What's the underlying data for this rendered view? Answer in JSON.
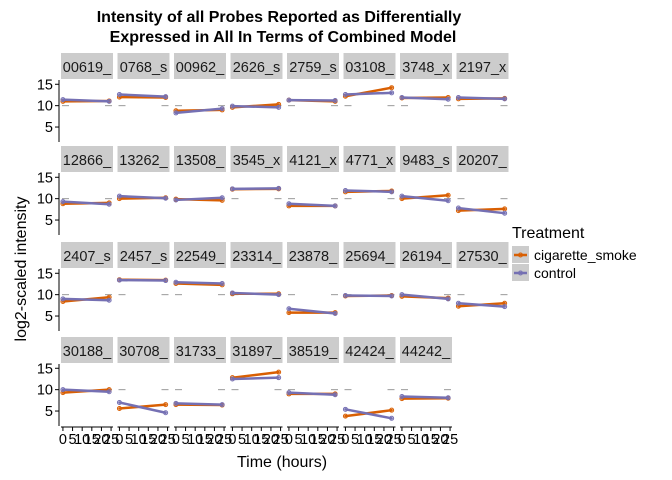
{
  "chart_data": {
    "type": "line",
    "title": "Intensity of all Probes Reported as Differentially\nExpressed in All In Terms of Combined Model",
    "xlabel": "Time (hours)",
    "ylabel": "log2-scaled intensity",
    "xlim": [
      -1,
      26
    ],
    "ylim": [
      1.5,
      16
    ],
    "x_ticks": [
      0,
      5,
      10,
      15,
      20,
      25
    ],
    "x_tick_labels": [
      "0",
      "5",
      "10",
      "15",
      "20",
      "25"
    ],
    "y_ticks": [
      5,
      10,
      15
    ],
    "y_tick_labels": [
      "5",
      "10",
      "15"
    ],
    "legend": {
      "title": "Treatment",
      "position": "right",
      "entries": [
        "cigarette_smoke",
        "control"
      ]
    },
    "colors": {
      "cigarette_smoke": "#d95f02",
      "control": "#7570b3"
    },
    "ncol": 8,
    "panels": [
      {
        "label": "00619_",
        "cs": [
          11.0,
          11.1
        ],
        "ct": [
          11.4,
          11.0
        ]
      },
      {
        "label": "0768_s",
        "cs": [
          12.0,
          11.9
        ],
        "ct": [
          12.6,
          12.1
        ]
      },
      {
        "label": "00962_",
        "cs": [
          8.8,
          9.0
        ],
        "ct": [
          8.3,
          9.3
        ]
      },
      {
        "label": "2626_s",
        "cs": [
          9.6,
          10.3
        ],
        "ct": [
          9.9,
          9.6
        ]
      },
      {
        "label": "2759_s",
        "cs": [
          11.3,
          11.0
        ],
        "ct": [
          11.3,
          11.2
        ]
      },
      {
        "label": "03108_",
        "cs": [
          12.2,
          14.2
        ],
        "ct": [
          12.6,
          13.0
        ]
      },
      {
        "label": "3748_x",
        "cs": [
          11.8,
          11.9
        ],
        "ct": [
          11.9,
          11.5
        ]
      },
      {
        "label": "2197_x",
        "cs": [
          11.6,
          11.7
        ],
        "ct": [
          11.9,
          11.6
        ]
      },
      {
        "label": "12866_",
        "cs": [
          8.8,
          9.0
        ],
        "ct": [
          9.3,
          8.7
        ]
      },
      {
        "label": "13262_",
        "cs": [
          10.0,
          10.2
        ],
        "ct": [
          10.6,
          10.1
        ]
      },
      {
        "label": "13508_",
        "cs": [
          9.9,
          9.6
        ],
        "ct": [
          9.7,
          10.2
        ]
      },
      {
        "label": "3545_x",
        "cs": [
          12.2,
          12.3
        ],
        "ct": [
          12.3,
          12.4
        ]
      },
      {
        "label": "4121_x",
        "cs": [
          8.3,
          8.3
        ],
        "ct": [
          8.8,
          8.3
        ]
      },
      {
        "label": "4771_x",
        "cs": [
          11.6,
          11.8
        ],
        "ct": [
          11.9,
          11.6
        ]
      },
      {
        "label": "9483_s",
        "cs": [
          10.0,
          10.8
        ],
        "ct": [
          10.6,
          9.5
        ]
      },
      {
        "label": "20207_",
        "cs": [
          7.2,
          7.6
        ],
        "ct": [
          7.8,
          6.6
        ]
      },
      {
        "label": "2407_s",
        "cs": [
          8.4,
          9.4
        ],
        "ct": [
          9.0,
          8.7
        ]
      },
      {
        "label": "2457_s",
        "cs": [
          13.5,
          13.4
        ],
        "ct": [
          13.4,
          13.3
        ]
      },
      {
        "label": "22549_",
        "cs": [
          12.6,
          12.3
        ],
        "ct": [
          12.9,
          12.6
        ]
      },
      {
        "label": "23314_",
        "cs": [
          10.2,
          10.2
        ],
        "ct": [
          10.4,
          10.0
        ]
      },
      {
        "label": "23878_",
        "cs": [
          5.8,
          5.8
        ],
        "ct": [
          6.7,
          5.6
        ]
      },
      {
        "label": "25694_",
        "cs": [
          9.7,
          9.8
        ],
        "ct": [
          9.8,
          9.7
        ]
      },
      {
        "label": "26194_",
        "cs": [
          9.6,
          9.2
        ],
        "ct": [
          10.0,
          9.0
        ]
      },
      {
        "label": "27530_",
        "cs": [
          7.3,
          8.0
        ],
        "ct": [
          8.0,
          7.2
        ]
      },
      {
        "label": "30188_",
        "cs": [
          9.3,
          10.0
        ],
        "ct": [
          10.0,
          9.5
        ]
      },
      {
        "label": "30708_",
        "cs": [
          5.6,
          6.5
        ],
        "ct": [
          7.0,
          4.6
        ]
      },
      {
        "label": "31733_",
        "cs": [
          6.5,
          6.4
        ],
        "ct": [
          6.8,
          6.5
        ]
      },
      {
        "label": "31897_",
        "cs": [
          12.8,
          14.1
        ],
        "ct": [
          12.5,
          12.8
        ]
      },
      {
        "label": "38519_",
        "cs": [
          9.0,
          9.0
        ],
        "ct": [
          9.3,
          8.8
        ]
      },
      {
        "label": "42424_",
        "cs": [
          3.8,
          5.2
        ],
        "ct": [
          5.4,
          3.3
        ]
      },
      {
        "label": "44242_",
        "cs": [
          7.9,
          8.0
        ],
        "ct": [
          8.4,
          8.1
        ]
      }
    ]
  }
}
